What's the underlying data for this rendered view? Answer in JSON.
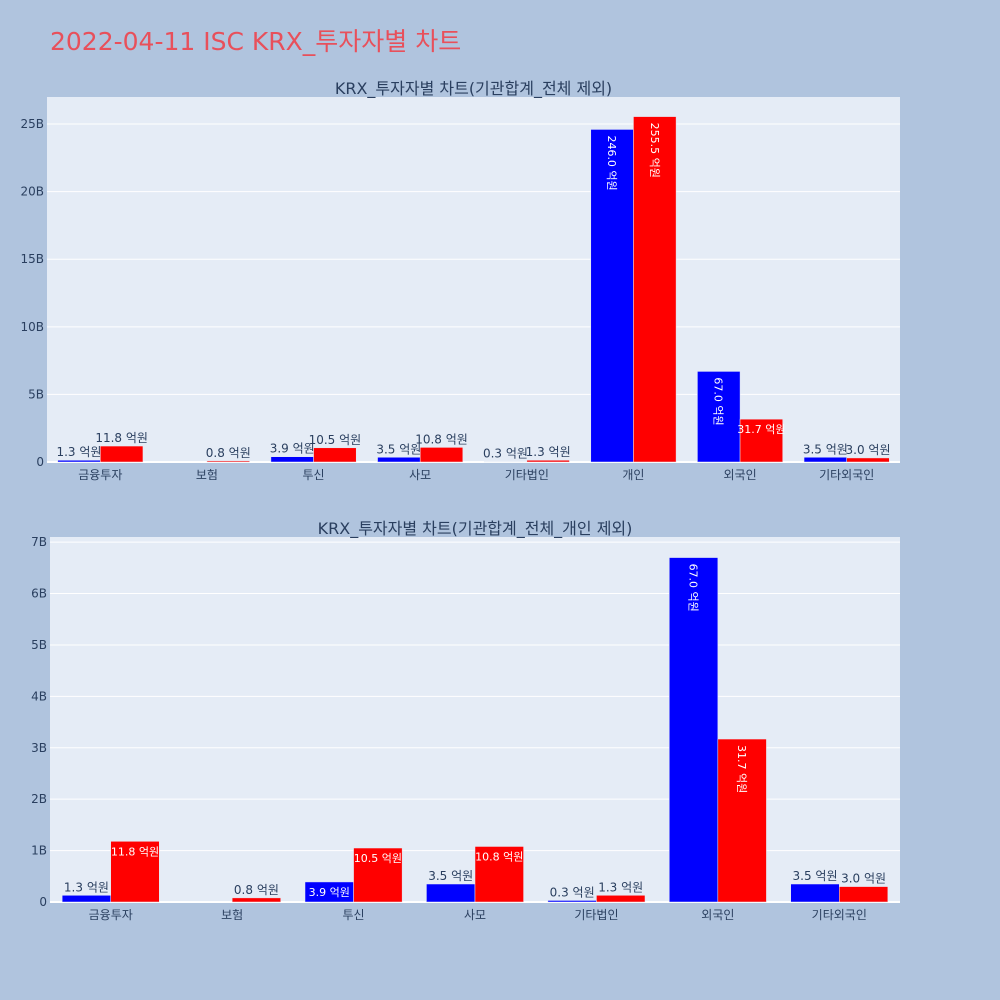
{
  "page": {
    "title": "2022-04-11 ISC KRX_투자자별 차트"
  },
  "colors": {
    "buy": "#0000ff",
    "sell": "#ff0000",
    "plot_bg": "#e5ecf6",
    "paper_bg": "#b0c4de",
    "title": "#e8505b"
  },
  "chart_data": [
    {
      "type": "bar",
      "title": "KRX_투자자별 차트(기관합계_전체 제외)",
      "categories": [
        "금융투자",
        "보험",
        "투신",
        "사모",
        "기타법인",
        "개인",
        "외국인",
        "기타외국인"
      ],
      "ylim": [
        0,
        27
      ],
      "yticks": [
        0,
        5,
        10,
        15,
        20,
        25
      ],
      "ytick_labels": [
        "0",
        "5B",
        "10B",
        "15B",
        "20B",
        "25B"
      ],
      "grid": true,
      "series": [
        {
          "color": "#0000ff",
          "values": [
            0.13,
            0.0,
            0.39,
            0.35,
            0.03,
            24.6,
            6.7,
            0.35
          ],
          "labels": [
            "1.3 억원",
            "",
            "3.9 억원",
            "3.5 억원",
            "0.3 억원",
            "246.0 억원",
            "67.0 억원",
            "3.5 억원"
          ]
        },
        {
          "color": "#ff0000",
          "values": [
            1.18,
            0.08,
            1.05,
            1.08,
            0.13,
            25.55,
            3.17,
            0.3
          ],
          "labels": [
            "11.8 억원",
            "0.8 억원",
            "10.5 억원",
            "10.8 억원",
            "1.3 억원",
            "255.5 억원",
            "31.7 억원",
            "3.0 억원"
          ]
        }
      ]
    },
    {
      "type": "bar",
      "title": "KRX_투자자별 차트(기관합계_전체_개인 제외)",
      "categories": [
        "금융투자",
        "보험",
        "투신",
        "사모",
        "기타법인",
        "외국인",
        "기타외국인"
      ],
      "ylim": [
        0,
        7.1
      ],
      "yticks": [
        0,
        1,
        2,
        3,
        4,
        5,
        6,
        7
      ],
      "ytick_labels": [
        "0",
        "1B",
        "2B",
        "3B",
        "4B",
        "5B",
        "6B",
        "7B"
      ],
      "grid": true,
      "series": [
        {
          "color": "#0000ff",
          "values": [
            0.13,
            0.0,
            0.39,
            0.35,
            0.03,
            6.7,
            0.35
          ],
          "labels": [
            "1.3 억원",
            "",
            "3.9 억원",
            "3.5 억원",
            "0.3 억원",
            "67.0 억원",
            "3.5 억원"
          ]
        },
        {
          "color": "#ff0000",
          "values": [
            1.18,
            0.08,
            1.05,
            1.08,
            0.13,
            3.17,
            0.3
          ],
          "labels": [
            "11.8 억원",
            "0.8 억원",
            "10.5 억원",
            "10.8 억원",
            "1.3 억원",
            "31.7 억원",
            "3.0 억원"
          ]
        }
      ]
    }
  ]
}
